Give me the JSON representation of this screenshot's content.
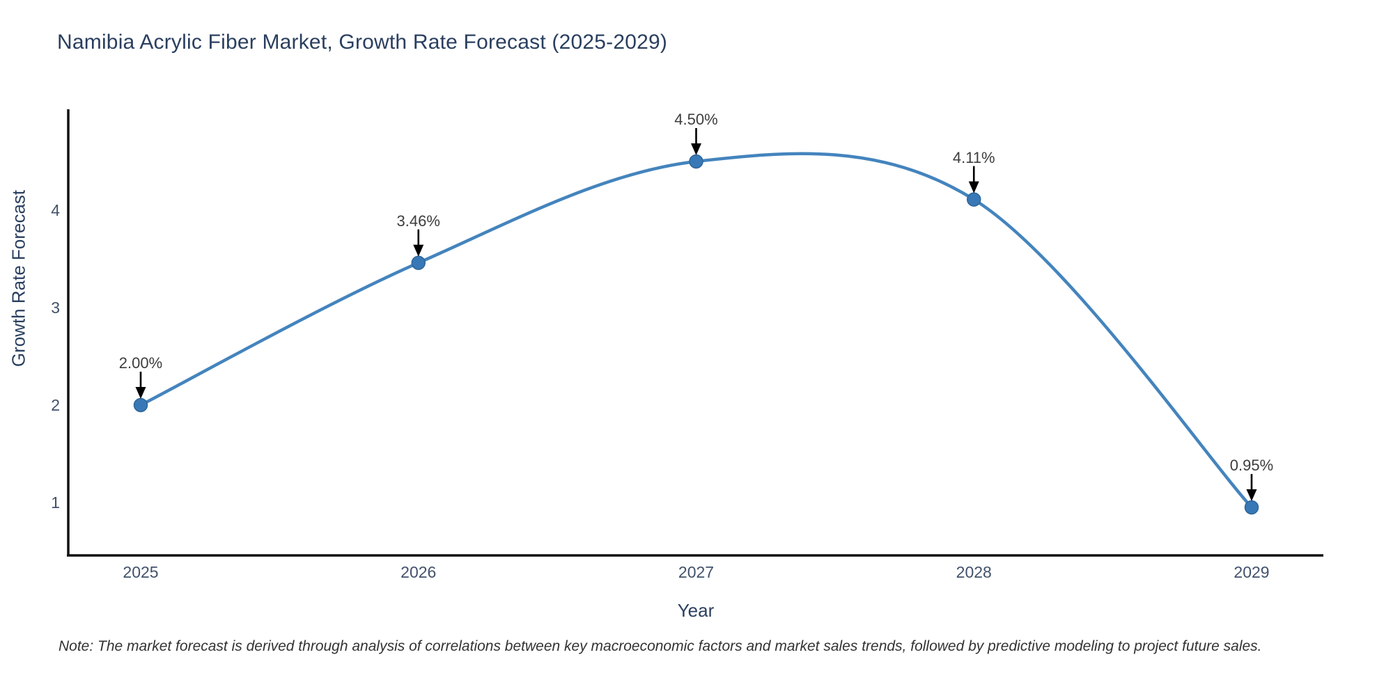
{
  "title": "Namibia Acrylic Fiber Market, Growth Rate Forecast (2025-2029)",
  "note": "Note: The market forecast is derived through analysis of correlations between key macroeconomic factors and market sales trends, followed by predictive modeling to project future sales.",
  "chart_data": {
    "type": "line",
    "line_shape": "spline",
    "title": "Namibia Acrylic Fiber Market, Growth Rate Forecast (2025-2029)",
    "xlabel": "Year",
    "ylabel": "Growth Rate Forecast",
    "categories": [
      "2025",
      "2026",
      "2027",
      "2028",
      "2029"
    ],
    "values": [
      2.0,
      3.46,
      4.5,
      4.11,
      0.95
    ],
    "point_labels": [
      "2.00%",
      "3.46%",
      "4.50%",
      "4.11%",
      "0.95%"
    ],
    "yticks": [
      "1",
      "2",
      "3",
      "4"
    ],
    "ylim": [
      0.46,
      5.05
    ],
    "grid": false,
    "legend": "none",
    "annotation_style": "black arrow pointing down to each marker",
    "colors": {
      "line": "#4484bd",
      "marker": "#3878b6",
      "marker_edge": "#2e6699",
      "axis": "#111111",
      "annotation_arrow": "#000000",
      "title_text": "#2a3f5f",
      "tick_text": "#42526b",
      "annotation_text": "#3d3d3d",
      "note_text": "#333333",
      "background": "#ffffff"
    }
  }
}
